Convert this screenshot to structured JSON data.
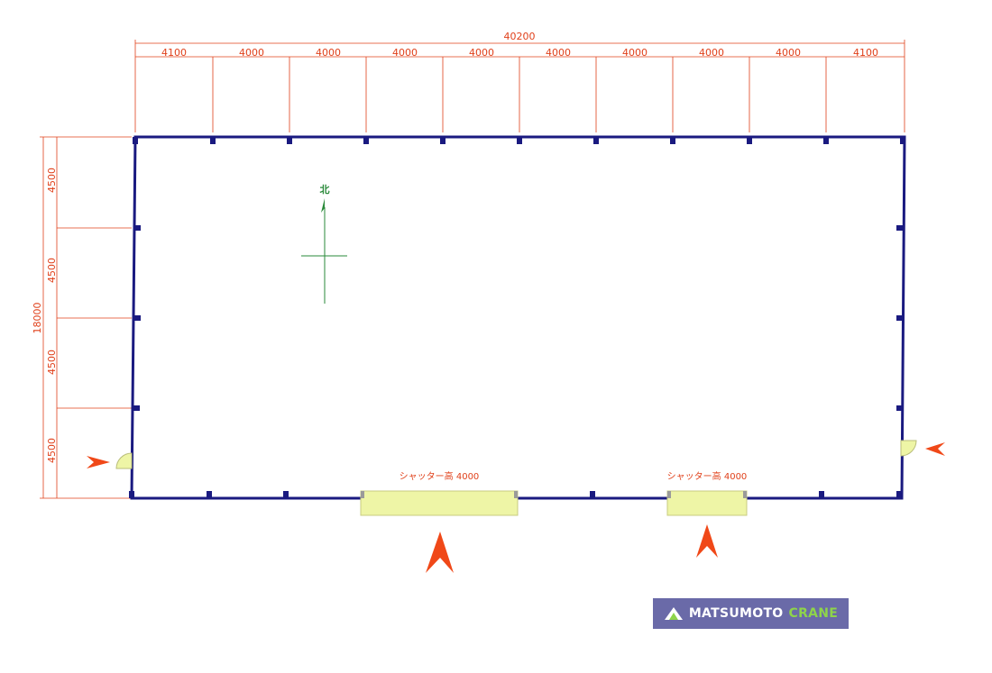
{
  "colors": {
    "wall": "#1a1a80",
    "dimension": "#e0401a",
    "shutter_fill": "#eef5a6",
    "shutter_stroke": "#c8cc80",
    "north": "#2a8a3a",
    "logo_bg": "#6a6aa8",
    "logo_accent": "#8ed44a"
  },
  "dimensions": {
    "overall_width": "40200",
    "overall_depth": "18000",
    "bays_top": [
      "4100",
      "4000",
      "4000",
      "4000",
      "4000",
      "4000",
      "4000",
      "4000",
      "4000",
      "4100"
    ],
    "bays_left": [
      "4500",
      "4500",
      "4500",
      "4500"
    ]
  },
  "north_label": "北",
  "shutters": [
    {
      "label": "シャッター高 4000"
    },
    {
      "label": "シャッター高 4000"
    }
  ],
  "logo": {
    "brand_a": "MATSUMOTO",
    "brand_b": "CRANE"
  }
}
